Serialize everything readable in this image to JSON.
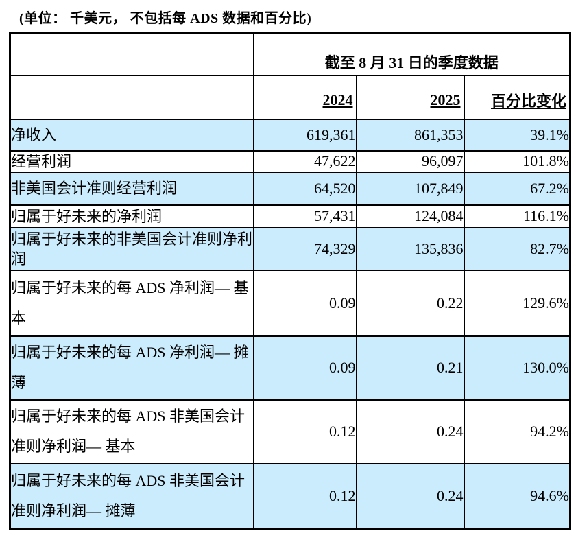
{
  "title": "(单位： 千美元， 不包括每 ADS 数据和百分比)",
  "table": {
    "span_header": "截至 8 月 31 日的季度数据",
    "columns": [
      "2024",
      "2025",
      "百分比变化"
    ],
    "highlight_color": "#cbecfc",
    "rows": [
      {
        "label": "净收入",
        "y2024": "619,361",
        "y2025": "861,353",
        "change": "39.1%"
      },
      {
        "label": "经营利润",
        "y2024": "47,622",
        "y2025": "96,097",
        "change": "101.8%"
      },
      {
        "label": "非美国会计准则经营利润",
        "y2024": "64,520",
        "y2025": "107,849",
        "change": "67.2%"
      },
      {
        "label": "归属于好未来的净利润",
        "y2024": "57,431",
        "y2025": "124,084",
        "change": "116.1%"
      },
      {
        "label": "归属于好未来的非美国会计准则净利润",
        "y2024": "74,329",
        "y2025": "135,836",
        "change": "82.7%"
      },
      {
        "label": "归属于好未来的每 ADS 净利润— 基本",
        "y2024": "0.09",
        "y2025": "0.22",
        "change": "129.6%"
      },
      {
        "label": "归属于好未来的每 ADS 净利润— 摊薄",
        "y2024": "0.09",
        "y2025": "0.21",
        "change": "130.0%"
      },
      {
        "label": "归属于好未来的每 ADS 非美国会计准则净利润— 基本",
        "y2024": "0.12",
        "y2025": "0.24",
        "change": "94.2%"
      },
      {
        "label": "归属于好未来的每 ADS 非美国会计准则净利润— 摊薄",
        "y2024": "0.12",
        "y2025": "0.24",
        "change": "94.6%"
      }
    ]
  }
}
